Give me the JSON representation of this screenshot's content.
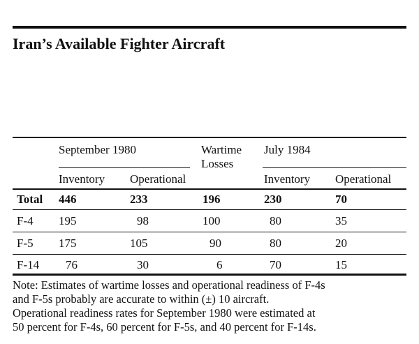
{
  "title": "Iran’s Available Fighter Aircraft",
  "headers": {
    "sep1980": "September 1980",
    "wartime_line1": "Wartime",
    "wartime_line2": "Losses",
    "jul1984": "July 1984",
    "inventory": "Inventory",
    "operational": "Operational"
  },
  "rows": [
    {
      "label": "Total",
      "sep_inv": "446",
      "sep_op": "233",
      "losses": "196",
      "jul_inv": "230",
      "jul_op": "70"
    },
    {
      "label": "F-4",
      "sep_inv": "195",
      "sep_op": "98",
      "losses": "100",
      "jul_inv": "80",
      "jul_op": "35"
    },
    {
      "label": "F-5",
      "sep_inv": "175",
      "sep_op": "105",
      "losses": "90",
      "jul_inv": "80",
      "jul_op": "20"
    },
    {
      "label": "F-14",
      "sep_inv": "76",
      "sep_op": "30",
      "losses": "6",
      "jul_inv": "70",
      "jul_op": "15"
    }
  ],
  "note": {
    "line1": "Note: Estimates of wartime losses and operational readiness of F-4s",
    "line2": "and F-5s probably are accurate to within (±) 10 aircraft.",
    "line3": "Operational readiness rates for September 1980 were estimated at",
    "line4": "50 percent for F-4s, 60 percent for F-5s, and 40 percent for F-14s."
  }
}
